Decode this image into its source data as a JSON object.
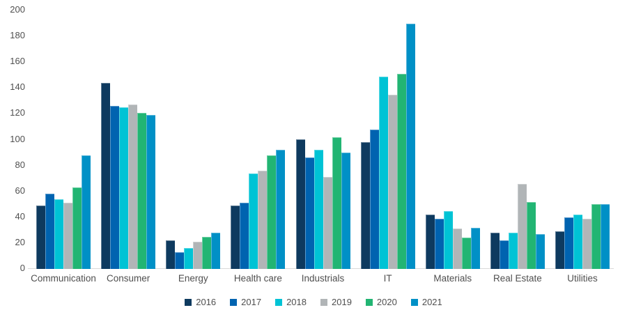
{
  "chart_data": {
    "type": "bar",
    "title": "",
    "xlabel": "",
    "ylabel": "",
    "categories": [
      "Communication",
      "Consumer",
      "Energy",
      "Health care",
      "Industrials",
      "IT",
      "Materials",
      "Real Estate",
      "Utilities"
    ],
    "series": [
      {
        "name": "2016",
        "color": "#0e3a5f",
        "values": [
          49,
          144,
          22,
          49,
          100,
          98,
          42,
          28,
          29
        ]
      },
      {
        "name": "2017",
        "color": "#0063b0",
        "values": [
          58,
          126,
          13,
          51,
          86,
          108,
          39,
          22,
          40
        ]
      },
      {
        "name": "2018",
        "color": "#00c3d5",
        "values": [
          54,
          125,
          16,
          74,
          92,
          149,
          45,
          28,
          42
        ]
      },
      {
        "name": "2019",
        "color": "#b1b5b7",
        "values": [
          51,
          127,
          21,
          76,
          71,
          135,
          31,
          66,
          39
        ]
      },
      {
        "name": "2020",
        "color": "#22b573",
        "values": [
          63,
          121,
          25,
          88,
          102,
          151,
          24,
          52,
          50
        ]
      },
      {
        "name": "2021",
        "color": "#0090c6",
        "values": [
          88,
          119,
          28,
          92,
          90,
          190,
          32,
          27,
          50
        ]
      }
    ],
    "ylim": [
      0,
      200
    ],
    "yticks": [
      0,
      20,
      40,
      60,
      80,
      100,
      120,
      140,
      160,
      180,
      200
    ],
    "grid": false,
    "legend_position": "bottom",
    "axis_line_color": "#d9d9d9",
    "text_color": "#4f4f4f",
    "background_color": "#ffffff"
  }
}
